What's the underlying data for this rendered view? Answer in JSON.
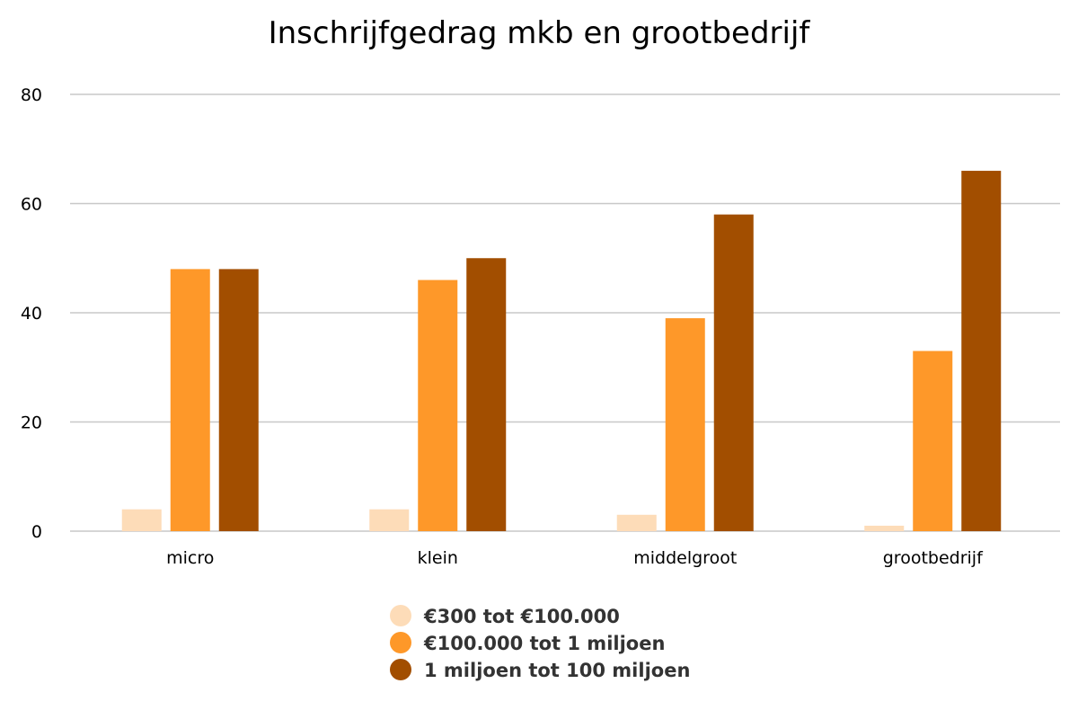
{
  "chart_data": {
    "type": "bar",
    "title": "Inschrijfgedrag mkb en grootbedrijf",
    "xlabel": "",
    "ylabel": "",
    "categories": [
      "micro",
      "klein",
      "middelgroot",
      "grootbedrijf"
    ],
    "series": [
      {
        "name": "€300 tot €100.000",
        "color": "#fddcb8",
        "values": [
          4,
          4,
          3,
          1
        ]
      },
      {
        "name": "€100.000 tot 1 miljoen",
        "color": "#fe9829",
        "values": [
          48,
          46,
          39,
          33
        ]
      },
      {
        "name": "1 miljoen tot 100 miljoen",
        "color": "#a24e00",
        "values": [
          48,
          50,
          58,
          66
        ]
      }
    ],
    "ylim": [
      0,
      80
    ],
    "yticks": [
      0,
      20,
      40,
      60,
      80
    ],
    "grid": true,
    "legend_position": "bottom-center"
  }
}
